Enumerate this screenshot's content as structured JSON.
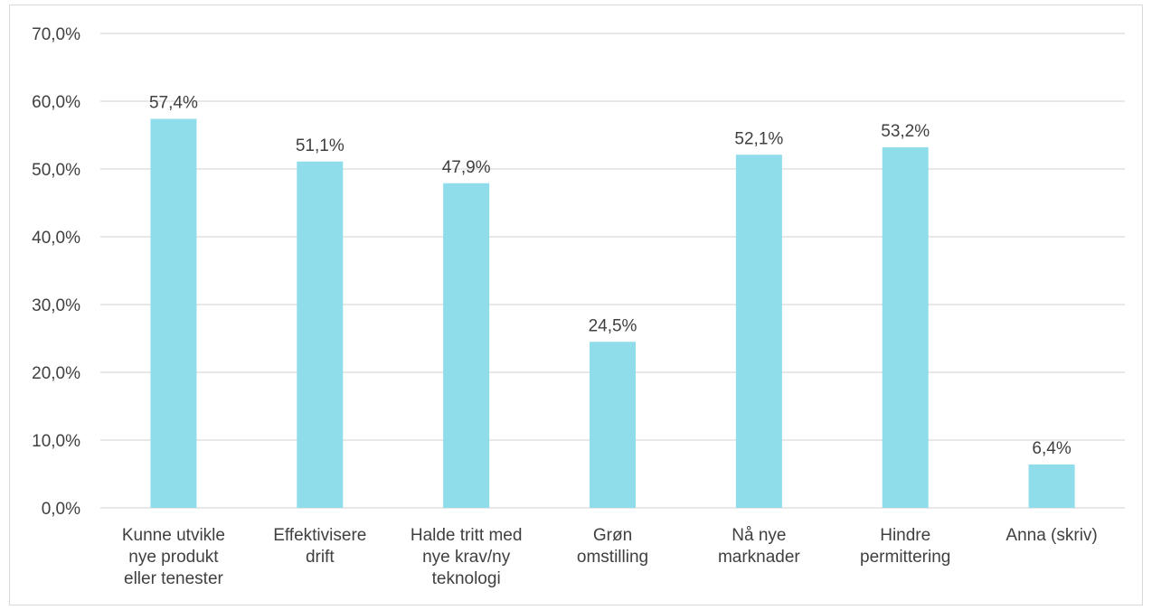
{
  "chart_data": {
    "type": "bar",
    "categories": [
      [
        "Kunne utvikle",
        "nye produkt",
        "eller tenester"
      ],
      [
        "Effektivisere",
        "drift"
      ],
      [
        "Halde tritt med",
        "nye krav/ny",
        "teknologi"
      ],
      [
        "Grøn",
        "omstilling"
      ],
      [
        "Nå nye",
        "marknader"
      ],
      [
        "Hindre",
        "permittering"
      ],
      [
        "Anna (skriv)"
      ]
    ],
    "values": [
      57.4,
      51.1,
      47.9,
      24.5,
      52.1,
      53.2,
      6.4
    ],
    "value_labels": [
      "57,4%",
      "51,1%",
      "47,9%",
      "24,5%",
      "52,1%",
      "53,2%",
      "6,4%"
    ],
    "y_ticks": [
      0,
      10,
      20,
      30,
      40,
      50,
      60,
      70
    ],
    "y_tick_labels": [
      "0,0%",
      "10,0%",
      "20,0%",
      "30,0%",
      "40,0%",
      "50,0%",
      "60,0%",
      "70,0%"
    ],
    "ylim": [
      0,
      70
    ],
    "grid": true,
    "legend": "none",
    "title": "",
    "xlabel": "",
    "ylabel": "",
    "bar_color": "#8fdcea",
    "grid_color": "#d9d9d9"
  }
}
